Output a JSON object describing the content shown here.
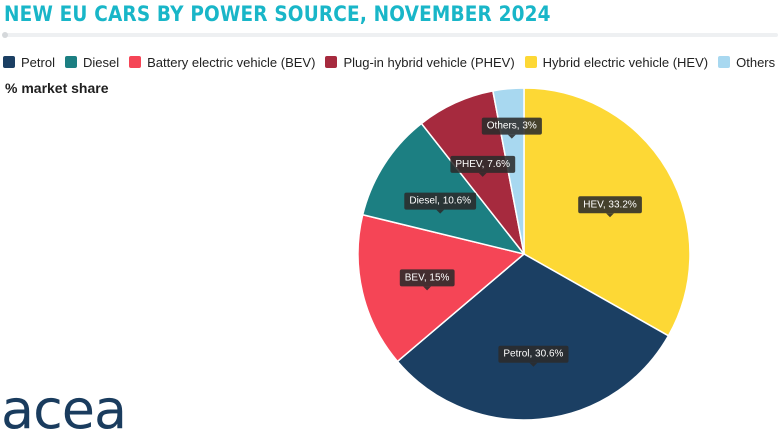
{
  "header": {
    "title": "NEW EU CARS BY POWER SOURCE, NOVEMBER 2024",
    "subtitle": "% market share"
  },
  "logo": {
    "text": "acea"
  },
  "legend": [
    {
      "label": "Petrol",
      "color": "#1b3f63"
    },
    {
      "label": "Diesel",
      "color": "#1c7f82"
    },
    {
      "label": "Battery electric vehicle (BEV)",
      "color": "#f54556"
    },
    {
      "label": "Plug-in hybrid vehicle (PHEV)",
      "color": "#a62a3e"
    },
    {
      "label": "Hybrid electric vehicle (HEV)",
      "color": "#fdd835"
    },
    {
      "label": "Others",
      "color": "#a8d8f0"
    }
  ],
  "chart_data": {
    "type": "pie",
    "title": "NEW EU CARS BY POWER SOURCE, NOVEMBER 2024",
    "subtitle": "% market share",
    "legend_position": "top-left",
    "slices": [
      {
        "name": "HEV",
        "legend": "Hybrid electric vehicle (HEV)",
        "value": 33.2,
        "label": "HEV, 33.2%",
        "color": "#fdd835"
      },
      {
        "name": "Petrol",
        "legend": "Petrol",
        "value": 30.6,
        "label": "Petrol, 30.6%",
        "color": "#1b3f63"
      },
      {
        "name": "BEV",
        "legend": "Battery electric vehicle (BEV)",
        "value": 15,
        "label": "BEV, 15%",
        "color": "#f54556"
      },
      {
        "name": "Diesel",
        "legend": "Diesel",
        "value": 10.6,
        "label": "Diesel, 10.6%",
        "color": "#1c7f82"
      },
      {
        "name": "PHEV",
        "legend": "Plug-in hybrid vehicle (PHEV)",
        "value": 7.6,
        "label": "PHEV, 7.6%",
        "color": "#a62a3e"
      },
      {
        "name": "Others",
        "legend": "Others",
        "value": 3,
        "label": "Others, 3%",
        "color": "#a8d8f0"
      }
    ]
  }
}
